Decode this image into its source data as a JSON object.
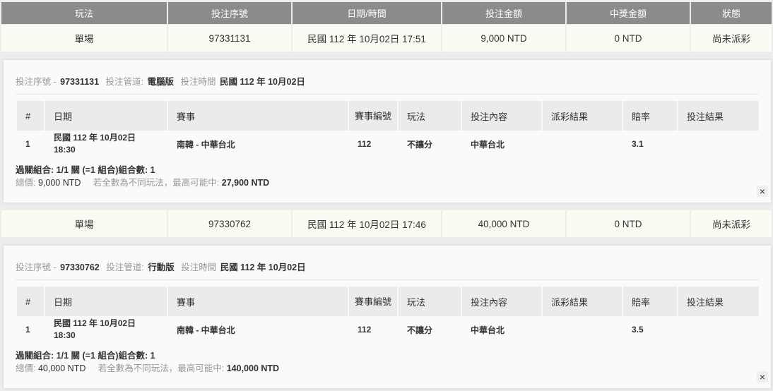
{
  "headers": [
    "玩法",
    "投注序號",
    "日期/時間",
    "投注金額",
    "中獎金額",
    "狀態"
  ],
  "detail_labels": {
    "serial": "投注序號 -",
    "channel": "投注管道:",
    "time": "投注時間",
    "combo_label": "過關組合:",
    "combo_value": "1/1 關 (=1 組合)組合數: 1",
    "total_label": "總價:",
    "max_label": "若全數為不同玩法，最高可能中:",
    "close": "×"
  },
  "detail_headers": [
    "#",
    "日期",
    "賽事",
    "賽事編號",
    "玩法",
    "投注內容",
    "派彩結果",
    "賠率",
    "投注結果"
  ],
  "bets": [
    {
      "type": "單場",
      "serial": "97331131",
      "datetime": "民國 112 年 10月02日 17:51",
      "amount": "9,000 NTD",
      "prize": "0 NTD",
      "status": "尚未派彩",
      "channel": "電腦版",
      "date": "民國 112 年 10月02日",
      "line": {
        "no": "1",
        "date": "民國 112 年 10月02日",
        "time": "18:30",
        "match": "南韓 - 中華台北",
        "match_no": "112",
        "play": "不讓分",
        "pick": "中華台北",
        "result": "",
        "odds": "3.1",
        "bet_result": ""
      },
      "total": "9,000 NTD",
      "max_win": "27,900 NTD"
    },
    {
      "type": "單場",
      "serial": "97330762",
      "datetime": "民國 112 年 10月02日 17:46",
      "amount": "40,000 NTD",
      "prize": "0 NTD",
      "status": "尚未派彩",
      "channel": "行動版",
      "date": "民國 112 年 10月02日",
      "line": {
        "no": "1",
        "date": "民國 112 年 10月02日",
        "time": "18:30",
        "match": "南韓 - 中華台北",
        "match_no": "112",
        "play": "不讓分",
        "pick": "中華台北",
        "result": "",
        "odds": "3.5",
        "bet_result": ""
      },
      "total": "40,000 NTD",
      "max_win": "140,000 NTD"
    }
  ]
}
